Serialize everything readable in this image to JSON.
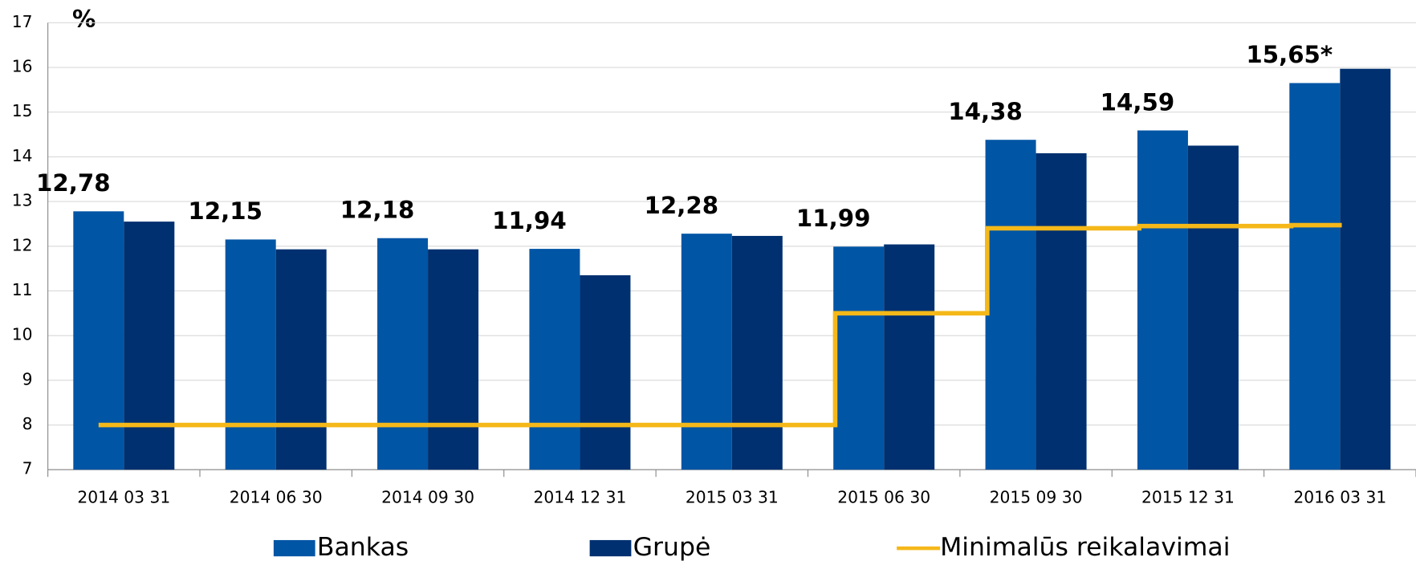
{
  "chart_data": {
    "type": "bar",
    "unit_label": "%",
    "categories": [
      "2014 03 31",
      "2014 06 30",
      "2014 09 30",
      "2014 12 31",
      "2015 03 31",
      "2015 06 30",
      "2015 09 30",
      "2015 12 31",
      "2016 03 31"
    ],
    "series": [
      {
        "name": "Bankas",
        "color": "#0055a5",
        "values": [
          12.78,
          12.15,
          12.18,
          11.94,
          12.28,
          11.99,
          14.38,
          14.59,
          15.65
        ],
        "value_labels": [
          "12,78",
          "12,15",
          "12,18",
          "11,94",
          "12,28",
          "11,99",
          "14,38",
          "14,59",
          "15,65*"
        ]
      },
      {
        "name": "Grupė",
        "color": "#003070",
        "values": [
          12.55,
          11.93,
          11.93,
          11.35,
          12.23,
          12.04,
          14.08,
          14.25,
          15.97
        ]
      },
      {
        "name": "Minimalūs reikalavimai",
        "type": "line",
        "step": true,
        "color": "#f5b819",
        "values": [
          8,
          8,
          8,
          8,
          8,
          10.5,
          12.4,
          12.45,
          12.47
        ]
      }
    ],
    "ylim": [
      7,
      17
    ],
    "yticks": [
      7,
      8,
      9,
      10,
      11,
      12,
      13,
      14,
      15,
      16,
      17
    ],
    "grid": true
  }
}
